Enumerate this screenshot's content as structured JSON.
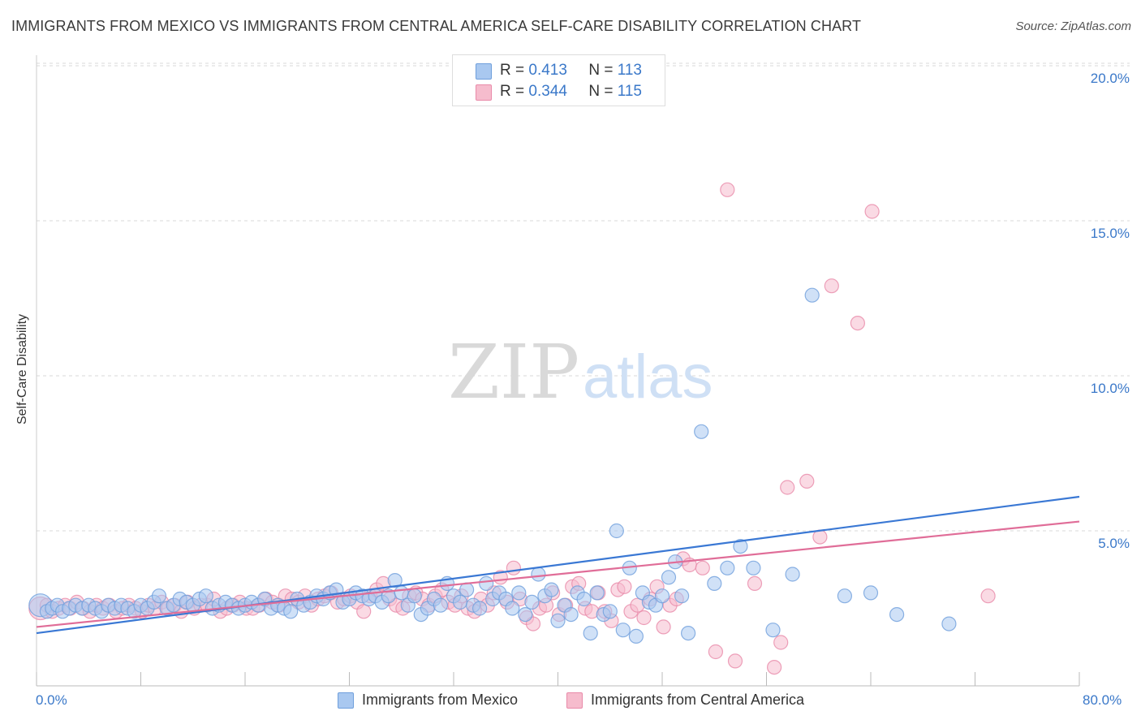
{
  "title": "IMMIGRANTS FROM MEXICO VS IMMIGRANTS FROM CENTRAL AMERICA SELF-CARE DISABILITY CORRELATION CHART",
  "source": "Source: ZipAtlas.com",
  "watermark": {
    "zip": "ZIP",
    "atlas": "atlas"
  },
  "colors": {
    "mexico_fill": "#a9c8f0",
    "mexico_stroke": "#6f9fdc",
    "mexico_line": "#3a78d4",
    "ca_fill": "#f6bccd",
    "ca_stroke": "#e98aa9",
    "ca_line": "#e06d98",
    "tick_label": "#3a78c9",
    "grid": "#d8d8d8"
  },
  "legend": {
    "mexico": {
      "r_label": "R = ",
      "r_value": "0.413",
      "n_label": "N = ",
      "n_value": "113"
    },
    "ca": {
      "r_label": "R = ",
      "r_value": "0.344",
      "n_label": "N = ",
      "n_value": "115"
    }
  },
  "chart_data": {
    "type": "scatter",
    "title": "IMMIGRANTS FROM MEXICO VS IMMIGRANTS FROM CENTRAL AMERICA SELF-CARE DISABILITY CORRELATION CHART",
    "xlabel": "",
    "ylabel": "Self-Care Disability",
    "xlim": [
      0,
      80
    ],
    "ylim": [
      0,
      20.5
    ],
    "x_tick_labels": [
      "0.0%",
      "80.0%"
    ],
    "y_ticks": [
      5,
      10,
      15,
      20
    ],
    "y_tick_labels": [
      "5.0%",
      "10.0%",
      "15.0%",
      "20.0%"
    ],
    "grid": true,
    "legend_position": "top-center",
    "series": [
      {
        "name": "Immigrants from Mexico",
        "r": 0.413,
        "n": 113,
        "trend": {
          "x": [
            0,
            80
          ],
          "y": [
            1.7,
            6.1
          ]
        },
        "points": [
          [
            0.3,
            2.6
          ],
          [
            0.8,
            2.4
          ],
          [
            1.2,
            2.5
          ],
          [
            1.6,
            2.6
          ],
          [
            2.0,
            2.4
          ],
          [
            2.5,
            2.5
          ],
          [
            3.0,
            2.6
          ],
          [
            3.5,
            2.5
          ],
          [
            4.0,
            2.6
          ],
          [
            4.5,
            2.5
          ],
          [
            5.0,
            2.4
          ],
          [
            5.5,
            2.6
          ],
          [
            6.0,
            2.5
          ],
          [
            6.5,
            2.6
          ],
          [
            7.0,
            2.5
          ],
          [
            7.5,
            2.4
          ],
          [
            8.0,
            2.6
          ],
          [
            8.5,
            2.5
          ],
          [
            9.0,
            2.7
          ],
          [
            9.4,
            2.9
          ],
          [
            10.0,
            2.5
          ],
          [
            10.5,
            2.6
          ],
          [
            11.0,
            2.8
          ],
          [
            11.5,
            2.7
          ],
          [
            12.0,
            2.6
          ],
          [
            12.5,
            2.8
          ],
          [
            13.0,
            2.9
          ],
          [
            13.5,
            2.5
          ],
          [
            14.0,
            2.6
          ],
          [
            14.5,
            2.7
          ],
          [
            15.0,
            2.6
          ],
          [
            15.5,
            2.5
          ],
          [
            16.0,
            2.6
          ],
          [
            16.5,
            2.7
          ],
          [
            17.0,
            2.6
          ],
          [
            17.5,
            2.8
          ],
          [
            18.0,
            2.5
          ],
          [
            18.5,
            2.6
          ],
          [
            19.0,
            2.5
          ],
          [
            19.5,
            2.4
          ],
          [
            20.0,
            2.8
          ],
          [
            20.5,
            2.6
          ],
          [
            21.0,
            2.7
          ],
          [
            21.5,
            2.9
          ],
          [
            22.0,
            2.8
          ],
          [
            22.5,
            3.0
          ],
          [
            23.0,
            3.1
          ],
          [
            23.5,
            2.7
          ],
          [
            24.0,
            2.8
          ],
          [
            24.5,
            3.0
          ],
          [
            25.0,
            2.9
          ],
          [
            25.5,
            2.8
          ],
          [
            26.0,
            2.9
          ],
          [
            26.5,
            2.7
          ],
          [
            27.0,
            2.9
          ],
          [
            27.5,
            3.4
          ],
          [
            28.0,
            3.0
          ],
          [
            28.5,
            2.6
          ],
          [
            29.0,
            2.9
          ],
          [
            29.5,
            2.3
          ],
          [
            30.0,
            2.5
          ],
          [
            30.5,
            2.8
          ],
          [
            31.0,
            2.6
          ],
          [
            31.5,
            3.3
          ],
          [
            32.0,
            2.9
          ],
          [
            32.5,
            2.7
          ],
          [
            33.0,
            3.1
          ],
          [
            33.5,
            2.6
          ],
          [
            34.0,
            2.5
          ],
          [
            34.5,
            3.3
          ],
          [
            35.0,
            2.8
          ],
          [
            35.5,
            3.0
          ],
          [
            36.0,
            2.8
          ],
          [
            36.5,
            2.5
          ],
          [
            37.0,
            3.0
          ],
          [
            37.5,
            2.3
          ],
          [
            38.0,
            2.7
          ],
          [
            38.5,
            3.6
          ],
          [
            39.0,
            2.9
          ],
          [
            39.5,
            3.1
          ],
          [
            40.0,
            2.1
          ],
          [
            40.5,
            2.6
          ],
          [
            41.0,
            2.3
          ],
          [
            41.5,
            3.0
          ],
          [
            42.0,
            2.8
          ],
          [
            42.5,
            1.7
          ],
          [
            43.0,
            3.0
          ],
          [
            43.5,
            2.3
          ],
          [
            44.0,
            2.4
          ],
          [
            44.5,
            5.0
          ],
          [
            45.0,
            1.8
          ],
          [
            45.5,
            3.8
          ],
          [
            46.0,
            1.6
          ],
          [
            46.5,
            3.0
          ],
          [
            47.0,
            2.7
          ],
          [
            47.5,
            2.6
          ],
          [
            48.0,
            2.9
          ],
          [
            48.5,
            3.5
          ],
          [
            49.0,
            4.0
          ],
          [
            49.5,
            2.9
          ],
          [
            50.0,
            1.7
          ],
          [
            51.0,
            8.2
          ],
          [
            52.0,
            3.3
          ],
          [
            53.0,
            3.8
          ],
          [
            54.0,
            4.5
          ],
          [
            55.0,
            3.8
          ],
          [
            56.5,
            1.8
          ],
          [
            58.0,
            3.6
          ],
          [
            59.5,
            12.6
          ],
          [
            62.0,
            2.9
          ],
          [
            64.0,
            3.0
          ],
          [
            66.0,
            2.3
          ],
          [
            70.0,
            2.0
          ]
        ]
      },
      {
        "name": "Immigrants from Central America",
        "r": 0.344,
        "n": 115,
        "trend": {
          "x": [
            0,
            80
          ],
          "y": [
            1.9,
            5.3
          ]
        },
        "points": [
          [
            0.3,
            2.5
          ],
          [
            0.8,
            2.6
          ],
          [
            1.2,
            2.4
          ],
          [
            1.7,
            2.5
          ],
          [
            2.2,
            2.6
          ],
          [
            2.6,
            2.5
          ],
          [
            3.1,
            2.7
          ],
          [
            3.6,
            2.5
          ],
          [
            4.1,
            2.4
          ],
          [
            4.6,
            2.6
          ],
          [
            5.1,
            2.5
          ],
          [
            5.6,
            2.6
          ],
          [
            6.1,
            2.4
          ],
          [
            6.6,
            2.5
          ],
          [
            7.1,
            2.6
          ],
          [
            7.6,
            2.5
          ],
          [
            8.1,
            2.4
          ],
          [
            8.6,
            2.6
          ],
          [
            9.1,
            2.5
          ],
          [
            9.6,
            2.7
          ],
          [
            10.1,
            2.5
          ],
          [
            10.6,
            2.6
          ],
          [
            11.1,
            2.4
          ],
          [
            11.6,
            2.7
          ],
          [
            12.1,
            2.5
          ],
          [
            12.6,
            2.6
          ],
          [
            13.1,
            2.6
          ],
          [
            13.6,
            2.8
          ],
          [
            14.1,
            2.4
          ],
          [
            14.6,
            2.5
          ],
          [
            15.1,
            2.6
          ],
          [
            15.6,
            2.7
          ],
          [
            16.1,
            2.5
          ],
          [
            16.6,
            2.5
          ],
          [
            17.1,
            2.6
          ],
          [
            17.6,
            2.8
          ],
          [
            18.1,
            2.7
          ],
          [
            18.6,
            2.6
          ],
          [
            19.1,
            2.9
          ],
          [
            19.6,
            2.8
          ],
          [
            20.1,
            2.7
          ],
          [
            20.6,
            2.9
          ],
          [
            21.1,
            2.6
          ],
          [
            21.6,
            2.8
          ],
          [
            22.1,
            2.9
          ],
          [
            22.6,
            3.0
          ],
          [
            23.1,
            2.7
          ],
          [
            23.6,
            2.8
          ],
          [
            24.1,
            2.9
          ],
          [
            24.6,
            2.7
          ],
          [
            25.1,
            2.4
          ],
          [
            25.6,
            2.9
          ],
          [
            26.1,
            3.1
          ],
          [
            26.6,
            3.3
          ],
          [
            27.1,
            2.8
          ],
          [
            27.6,
            2.6
          ],
          [
            28.1,
            2.5
          ],
          [
            28.6,
            2.9
          ],
          [
            29.1,
            3.0
          ],
          [
            29.6,
            2.8
          ],
          [
            30.1,
            2.6
          ],
          [
            30.6,
            2.9
          ],
          [
            31.1,
            3.1
          ],
          [
            31.6,
            2.7
          ],
          [
            32.1,
            2.6
          ],
          [
            32.6,
            2.9
          ],
          [
            33.1,
            2.5
          ],
          [
            33.6,
            2.4
          ],
          [
            34.1,
            2.8
          ],
          [
            34.6,
            2.6
          ],
          [
            35.1,
            3.0
          ],
          [
            35.6,
            3.5
          ],
          [
            36.1,
            2.7
          ],
          [
            36.6,
            3.8
          ],
          [
            37.1,
            2.8
          ],
          [
            37.6,
            2.2
          ],
          [
            38.1,
            2.0
          ],
          [
            38.6,
            2.5
          ],
          [
            39.1,
            2.6
          ],
          [
            39.6,
            3.0
          ],
          [
            40.1,
            2.3
          ],
          [
            40.6,
            2.6
          ],
          [
            41.1,
            3.2
          ],
          [
            41.6,
            3.3
          ],
          [
            42.1,
            2.5
          ],
          [
            42.6,
            2.4
          ],
          [
            43.1,
            3.0
          ],
          [
            43.6,
            2.4
          ],
          [
            44.1,
            2.1
          ],
          [
            44.6,
            3.1
          ],
          [
            45.1,
            3.2
          ],
          [
            45.6,
            2.4
          ],
          [
            46.1,
            2.6
          ],
          [
            46.6,
            2.2
          ],
          [
            47.1,
            2.8
          ],
          [
            47.6,
            3.2
          ],
          [
            48.1,
            1.9
          ],
          [
            48.6,
            2.6
          ],
          [
            49.1,
            2.8
          ],
          [
            49.6,
            4.1
          ],
          [
            50.1,
            3.9
          ],
          [
            51.1,
            3.8
          ],
          [
            52.1,
            1.1
          ],
          [
            53.0,
            16.0
          ],
          [
            53.6,
            0.8
          ],
          [
            55.1,
            3.3
          ],
          [
            56.6,
            0.6
          ],
          [
            57.1,
            1.4
          ],
          [
            57.6,
            6.4
          ],
          [
            59.1,
            6.6
          ],
          [
            60.1,
            4.8
          ],
          [
            61.0,
            12.9
          ],
          [
            63.0,
            11.7
          ],
          [
            64.1,
            15.3
          ],
          [
            73.0,
            2.9
          ]
        ]
      }
    ]
  },
  "bottom_legend": {
    "mexico": "Immigrants from Mexico",
    "ca": "Immigrants from Central America"
  }
}
